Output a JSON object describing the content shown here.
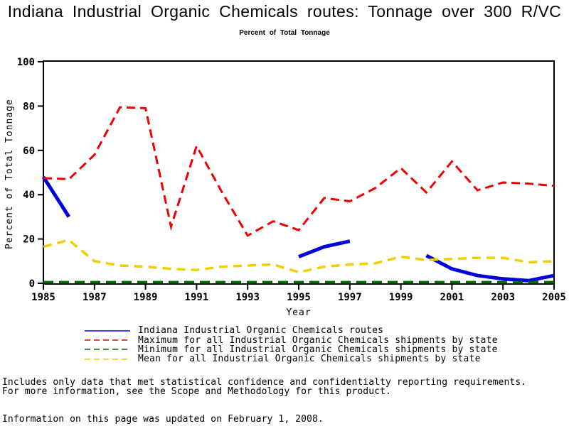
{
  "chart_data": {
    "type": "line",
    "title": "Indiana Industrial Organic Chemicals routes: Tonnage over 300 R/VC",
    "subtitle": "Percent of Total Tonnage",
    "xlabel": "Year",
    "ylabel": "Percent of Total Tonnage",
    "xlim": [
      1985,
      2005
    ],
    "ylim": [
      0,
      100
    ],
    "x_ticks": [
      1985,
      1987,
      1989,
      1991,
      1993,
      1995,
      1997,
      1999,
      2001,
      2003,
      2005
    ],
    "y_ticks": [
      0,
      20,
      40,
      60,
      80,
      100
    ],
    "grid": false,
    "legend_position": "bottom",
    "frame": true,
    "x": [
      1985,
      1986,
      1987,
      1988,
      1989,
      1990,
      1991,
      1992,
      1993,
      1994,
      1995,
      1996,
      1997,
      1998,
      1999,
      2000,
      2001,
      2002,
      2003,
      2004,
      2005
    ],
    "series": [
      {
        "name": "Indiana Industrial Organic Chemicals routes",
        "color": "#0000dd",
        "dash": "solid",
        "width": 5,
        "values": [
          48,
          30,
          null,
          null,
          null,
          null,
          null,
          null,
          null,
          null,
          12,
          16.5,
          19,
          null,
          null,
          12.5,
          6.5,
          3.5,
          2,
          1.2,
          3.5
        ]
      },
      {
        "name": "Maximum for all Industrial Organic Chemicals shipments by state",
        "color": "#ee0000",
        "dash": "12 7",
        "width": 3,
        "values": [
          47.5,
          47,
          58,
          79.5,
          79,
          25.5,
          62,
          41,
          21.5,
          28,
          24,
          38.5,
          37,
          43,
          52,
          41,
          55,
          42,
          45.5,
          45,
          44
        ]
      },
      {
        "name": "Minimum for all Industrial Organic Chemicals shipments by state",
        "color": "#006b00",
        "dash": "14 8",
        "width": 3.5,
        "values": [
          0.5,
          0.5,
          0.5,
          0.5,
          0.5,
          0.5,
          0.5,
          0.5,
          0.5,
          0.5,
          0.5,
          0.5,
          0.5,
          0.5,
          0.5,
          0.5,
          0.5,
          0.5,
          0.5,
          0.5,
          0.5
        ]
      },
      {
        "name": "Mean for all Industrial Organic Chemicals shipments by state",
        "color": "#f0cf00",
        "dash": "12 8",
        "width": 3.5,
        "values": [
          16.5,
          19.5,
          10,
          8,
          7.5,
          6.5,
          6,
          7.5,
          8,
          8.5,
          5,
          7.5,
          8.5,
          9,
          12,
          10.5,
          11,
          11.5,
          11.5,
          9.5,
          10
        ]
      }
    ]
  },
  "footer": {
    "note1": "Includes only data that met statistical confidence and confidentialty reporting requirements.",
    "note2": "For more information, see the Scope and Methodology for this product.",
    "updated": "Information on this page was updated on February 1, 2008."
  },
  "colors": {
    "axis": "#000000",
    "text": "#000000",
    "background": "#ffffff"
  }
}
